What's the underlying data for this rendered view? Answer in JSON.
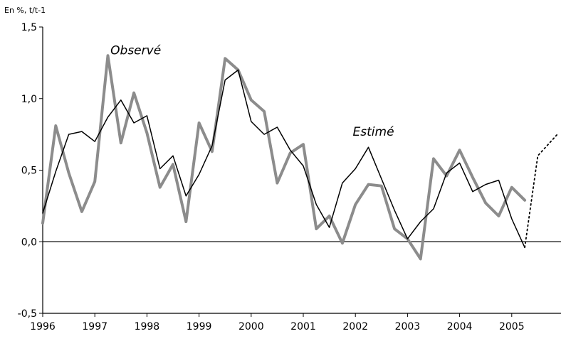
{
  "chart_data": {
    "type": "line",
    "unit_label": "En %, t/t-1",
    "xlim": [
      1996,
      2005.9
    ],
    "ylim": [
      -0.5,
      1.5
    ],
    "x_ticks": [
      "1996",
      "1997",
      "1998",
      "1999",
      "2000",
      "2001",
      "2002",
      "2003",
      "2004",
      "2005"
    ],
    "y_ticks": [
      "-0,5",
      "0,0",
      "0,5",
      "1,0",
      "1,5"
    ],
    "grid": false,
    "series": [
      {
        "name": "Observé",
        "color": "#8c8c8c",
        "style": "solid-thick",
        "x": [
          1996.0,
          1996.25,
          1996.5,
          1996.75,
          1997.0,
          1997.25,
          1997.5,
          1997.75,
          1998.0,
          1998.25,
          1998.5,
          1998.75,
          1999.0,
          1999.25,
          1999.5,
          1999.75,
          2000.0,
          2000.25,
          2000.5,
          2000.75,
          2001.0,
          2001.25,
          2001.5,
          2001.75,
          2002.0,
          2002.25,
          2002.5,
          2002.75,
          2003.0,
          2003.25,
          2003.5,
          2003.75,
          2004.0,
          2004.25,
          2004.5,
          2004.75,
          2005.0,
          2005.25
        ],
        "values": [
          0.13,
          0.81,
          0.48,
          0.21,
          0.42,
          1.3,
          0.69,
          1.04,
          0.76,
          0.38,
          0.54,
          0.14,
          0.83,
          0.63,
          1.28,
          1.2,
          0.99,
          0.91,
          0.41,
          0.62,
          0.68,
          0.09,
          0.18,
          -0.01,
          0.26,
          0.4,
          0.39,
          0.09,
          0.02,
          -0.12,
          0.58,
          0.46,
          0.64,
          0.45,
          0.27,
          0.18,
          0.38,
          0.29
        ]
      },
      {
        "name": "Estimé",
        "color": "#000000",
        "style": "solid-thin",
        "x": [
          1996.0,
          1996.25,
          1996.5,
          1996.75,
          1997.0,
          1997.25,
          1997.5,
          1997.75,
          1998.0,
          1998.25,
          1998.5,
          1998.75,
          1999.0,
          1999.25,
          1999.5,
          1999.75,
          2000.0,
          2000.25,
          2000.5,
          2000.75,
          2001.0,
          2001.25,
          2001.5,
          2001.75,
          2002.0,
          2002.25,
          2002.5,
          2002.75,
          2003.0,
          2003.25,
          2003.5,
          2003.75,
          2004.0,
          2004.25,
          2004.5,
          2004.75,
          2005.0,
          2005.25
        ],
        "values": [
          0.2,
          0.49,
          0.75,
          0.77,
          0.7,
          0.87,
          0.99,
          0.83,
          0.88,
          0.51,
          0.6,
          0.32,
          0.47,
          0.67,
          1.13,
          1.2,
          0.84,
          0.75,
          0.8,
          0.64,
          0.53,
          0.26,
          0.1,
          0.41,
          0.51,
          0.66,
          0.44,
          0.22,
          0.02,
          0.14,
          0.23,
          0.48,
          0.55,
          0.35,
          0.4,
          0.43,
          0.16,
          -0.04
        ]
      },
      {
        "name": "",
        "color": "#000000",
        "style": "dotted",
        "x": [
          2005.25,
          2005.5,
          2005.9
        ],
        "values": [
          -0.04,
          0.6,
          0.76
        ]
      }
    ],
    "annotations": [
      {
        "text": "Observé",
        "x": 1997.3,
        "y": 1.31
      },
      {
        "text": "Estimé",
        "x": 2001.95,
        "y": 0.74
      }
    ]
  }
}
